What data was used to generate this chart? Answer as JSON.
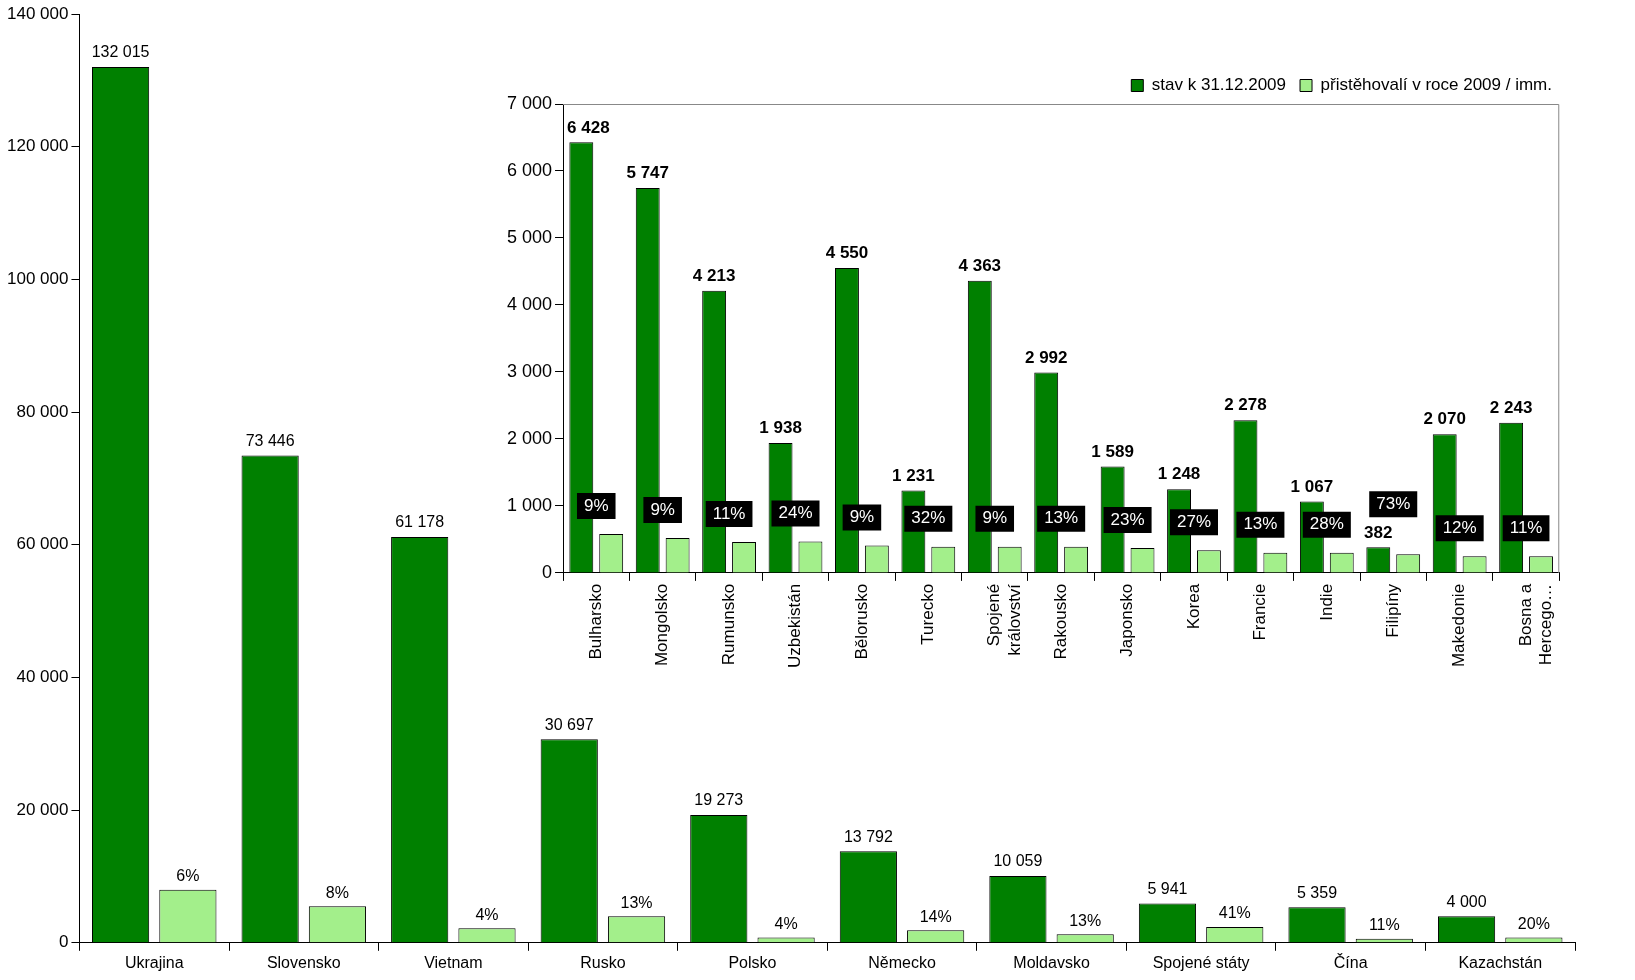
{
  "chart_data": [
    {
      "type": "bar",
      "categories": [
        "Ukrajina",
        "Slovensko",
        "Vietnam",
        "Rusko",
        "Polsko",
        "Německo",
        "Moldavsko",
        "Spojené státy",
        "Čína",
        "Kazachstán"
      ],
      "series": [
        {
          "color": "#008000",
          "values": [
            132015,
            73446,
            61178,
            30697,
            19273,
            13792,
            10059,
            5941,
            5359,
            4000
          ],
          "value_labels": [
            "132 015",
            "73 446",
            "61 178",
            "30 697",
            "19 273",
            "13 792",
            "10 059",
            "5 941",
            "5 359",
            "4 000"
          ]
        },
        {
          "color": "#a3ef8b",
          "values": [
            8000,
            5500,
            2200,
            4000,
            800,
            1900,
            1300,
            2400,
            600,
            800
          ]
        }
      ],
      "annotations": [
        "6%",
        "8%",
        "4%",
        "13%",
        "4%",
        "14%",
        "13%",
        "41%",
        "11%",
        "20%"
      ],
      "ylim": [
        0,
        140000
      ],
      "yticks": [
        0,
        {
          "value": 20000,
          "label": "20 000"
        },
        {
          "value": 40000,
          "label": "40 000"
        },
        {
          "value": 60000,
          "label": "60 000"
        },
        {
          "value": 80000,
          "label": "80 000"
        },
        {
          "value": 100000,
          "label": "100 000"
        },
        {
          "value": 120000,
          "label": "120 000"
        },
        {
          "value": 140000,
          "label": "140 000"
        }
      ]
    },
    {
      "type": "bar",
      "categories": [
        "Bulharsko",
        "Mongolsko",
        "Rumunsko",
        "Uzbekistán",
        "Bělorusko",
        "Turecko",
        "Spojené království",
        "Rakousko",
        "Japonsko",
        "Korea",
        "Francie",
        "Indie",
        "Filipíny",
        "Makedonie",
        "Bosna a Hercego…"
      ],
      "series": [
        {
          "name": "stav k 31.12.2009",
          "color": "#008000",
          "values": [
            6428,
            5747,
            4213,
            1938,
            4550,
            1231,
            4363,
            2992,
            1589,
            1248,
            2278,
            1067,
            382,
            2070,
            2243
          ],
          "value_labels": [
            "6 428",
            "5 747",
            "4 213",
            "1 938",
            "4 550",
            "1 231",
            "4 363",
            "2 992",
            "1 589",
            "1 248",
            "2 278",
            "1 067",
            "382",
            "2 070",
            "2 243"
          ]
        },
        {
          "name": "přistěhovalí v roce 2009 / imm.",
          "color": "#a3ef8b",
          "values": [
            580,
            520,
            460,
            470,
            410,
            390,
            390,
            390,
            370,
            340,
            300,
            300,
            280,
            250,
            250
          ]
        }
      ],
      "annotations": [
        {
          "text": "9%",
          "x": "Bulharsko",
          "y": 580
        },
        {
          "text": "9%",
          "x": "Mongolsko",
          "y": 520
        },
        {
          "text": "11%",
          "x": "Rumunsko",
          "y": 460
        },
        {
          "text": "24%",
          "x": "Uzbekistán",
          "y": 470
        },
        {
          "text": "9%",
          "x": "Bělorusko",
          "y": 410
        },
        {
          "text": "32%",
          "x": "Turecko",
          "y": 390
        },
        {
          "text": "9%",
          "x": "Spojené království",
          "y": 390
        },
        {
          "text": "13%",
          "x": "Rakousko",
          "y": 390
        },
        {
          "text": "23%",
          "x": "Japonsko",
          "y": 370
        },
        {
          "text": "27%",
          "x": "Korea",
          "y": 340
        },
        {
          "text": "13%",
          "x": "Francie",
          "y": 300
        },
        {
          "text": "28%",
          "x": "Indie",
          "y": 300
        },
        {
          "text": "73%",
          "x": "Filipíny",
          "y": 280
        },
        {
          "text": "12%",
          "x": "Makedonie",
          "y": 250
        },
        {
          "text": "11%",
          "x": "Bosna a Hercego…",
          "y": 250
        }
      ],
      "ylim": [
        0,
        7000
      ],
      "yticks": [
        0,
        {
          "value": 1000,
          "label": "1 000"
        },
        {
          "value": 2000,
          "label": "2 000"
        },
        {
          "value": 3000,
          "label": "3 000"
        },
        {
          "value": 4000,
          "label": "4 000"
        },
        {
          "value": 5000,
          "label": "5 000"
        },
        {
          "value": 6000,
          "label": "6 000"
        },
        {
          "value": 7000,
          "label": "7 000"
        }
      ],
      "legend": "top right"
    }
  ]
}
